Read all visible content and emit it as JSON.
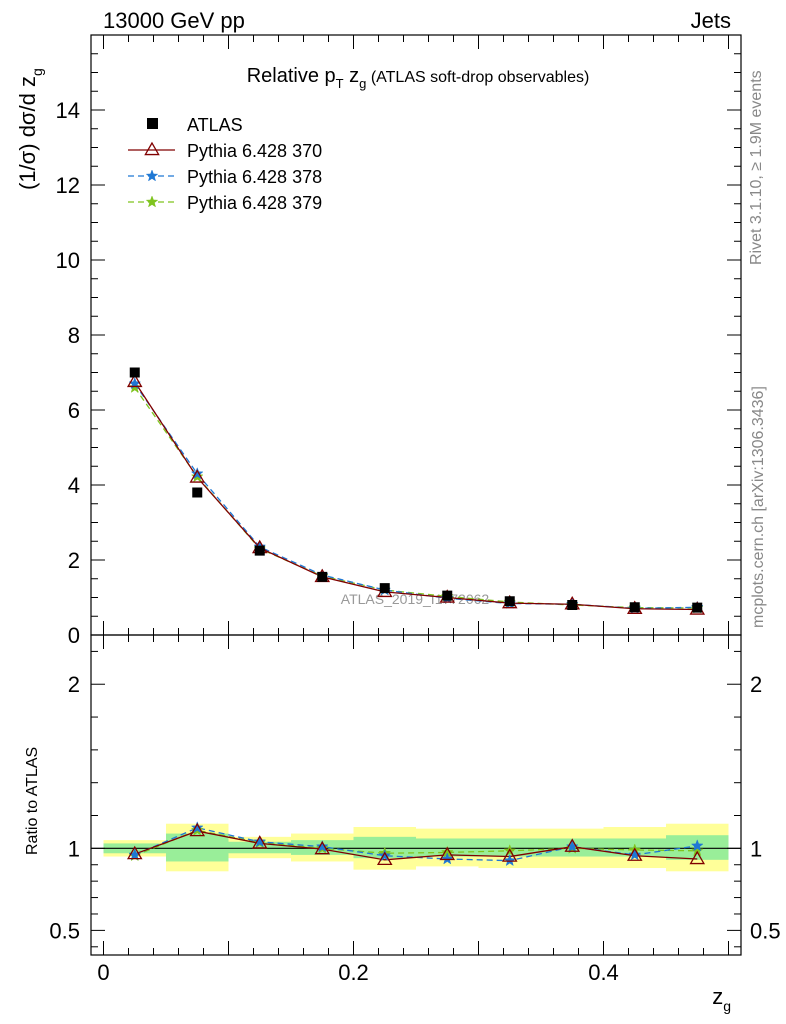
{
  "header": {
    "left": "13000 GeV pp",
    "right": "Jets"
  },
  "side_labels": {
    "rivet": "Rivet 3.1.10, ≥ 1.9M events",
    "mcplots": "mcplots.cern.ch [arXiv:1306.3436]"
  },
  "chart_data": {
    "type": "line",
    "title": "Relative p_T z_g (ATLAS soft-drop observables)",
    "title_parts": {
      "main": "Relative p",
      "sub1": "T",
      "mid": " z",
      "sub2": "g",
      "rest": " (ATLAS soft-drop observables)"
    },
    "watermark": "ATLAS_2019_I1772062",
    "xlabel": "z",
    "xlabel_sub": "g",
    "ylabel": "(1/σ) dσ/d z",
    "ylabel_sub": "g",
    "ratio_ylabel": "Ratio to ATLAS",
    "xlim": [
      -0.01,
      0.51
    ],
    "ylim": [
      0,
      16
    ],
    "ratio_ylim": [
      0.35,
      2.3
    ],
    "x_ticks": [
      "0",
      "0.2",
      "0.4"
    ],
    "y_ticks": [
      "0",
      "2",
      "4",
      "6",
      "8",
      "10",
      "12",
      "14"
    ],
    "ratio_ticks": [
      "0.5",
      "1",
      "2"
    ],
    "x": [
      0.025,
      0.075,
      0.125,
      0.175,
      0.225,
      0.275,
      0.325,
      0.375,
      0.425,
      0.475
    ],
    "data": {
      "name": "ATLAS",
      "values": [
        7.0,
        3.8,
        2.25,
        1.55,
        1.25,
        1.05,
        0.9,
        0.8,
        0.74,
        0.73
      ]
    },
    "band_inner": [
      [
        0.97,
        1.03
      ],
      [
        0.92,
        1.09
      ],
      [
        0.97,
        1.04
      ],
      [
        0.96,
        1.05
      ],
      [
        0.94,
        1.07
      ],
      [
        0.95,
        1.06
      ],
      [
        0.95,
        1.06
      ],
      [
        0.95,
        1.06
      ],
      [
        0.95,
        1.06
      ],
      [
        0.93,
        1.08
      ]
    ],
    "band_outer": [
      [
        0.95,
        1.05
      ],
      [
        0.86,
        1.15
      ],
      [
        0.94,
        1.07
      ],
      [
        0.92,
        1.09
      ],
      [
        0.87,
        1.13
      ],
      [
        0.89,
        1.12
      ],
      [
        0.88,
        1.12
      ],
      [
        0.88,
        1.12
      ],
      [
        0.88,
        1.13
      ],
      [
        0.86,
        1.15
      ]
    ],
    "series": [
      {
        "name": "Pythia 6.428 370",
        "color": "#800000",
        "dash": "",
        "marker": "triangle",
        "values": [
          6.75,
          4.2,
          2.32,
          1.55,
          1.15,
          1.0,
          0.85,
          0.82,
          0.7,
          0.68
        ],
        "ratio": [
          0.965,
          1.105,
          1.03,
          0.995,
          0.93,
          0.96,
          0.95,
          1.01,
          0.955,
          0.935
        ]
      },
      {
        "name": "Pythia 6.428 378",
        "color": "#1f78d4",
        "dash": "6,4",
        "marker": "star",
        "values": [
          6.7,
          4.3,
          2.35,
          1.6,
          1.2,
          0.98,
          0.84,
          0.82,
          0.71,
          0.74
        ],
        "ratio": [
          0.96,
          1.125,
          1.04,
          1.01,
          0.955,
          0.935,
          0.925,
          1.01,
          0.96,
          1.015
        ]
      },
      {
        "name": "Pythia 6.428 379",
        "color": "#7fc41f",
        "dash": "6,4",
        "marker": "star",
        "values": [
          6.6,
          4.22,
          2.3,
          1.57,
          1.2,
          1.03,
          0.88,
          0.8,
          0.73,
          0.72
        ],
        "ratio": [
          0.955,
          1.11,
          1.035,
          1.0,
          0.97,
          0.975,
          0.985,
          1.0,
          0.99,
          0.985
        ]
      }
    ]
  }
}
